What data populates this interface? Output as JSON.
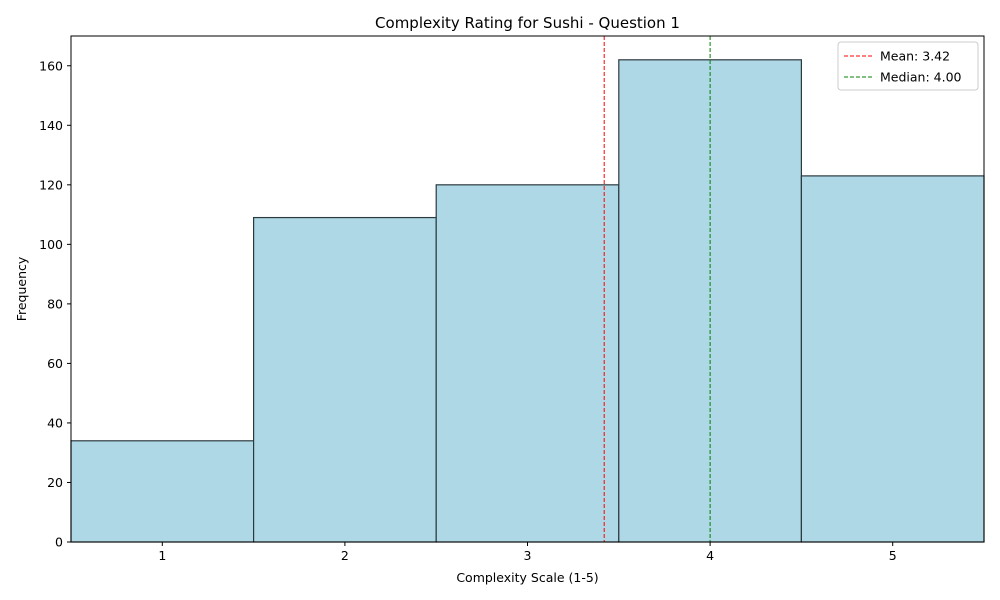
{
  "chart_data": {
    "type": "bar",
    "title": "Complexity Rating for Sushi - Question 1",
    "xlabel": "Complexity Scale (1-5)",
    "ylabel": "Frequency",
    "categories": [
      "1",
      "2",
      "3",
      "4",
      "5"
    ],
    "values": [
      34,
      109,
      120,
      162,
      123
    ],
    "xlim": [
      0.5,
      5.5
    ],
    "ylim": [
      0,
      170
    ],
    "yticks": [
      0,
      20,
      40,
      60,
      80,
      100,
      120,
      140,
      160
    ],
    "grid": false,
    "bar_color": "#add8e6",
    "bar_edge_color": "#000000",
    "reference_lines": [
      {
        "label": "Mean: 3.42",
        "value": 3.42,
        "color": "#ff0000",
        "style": "dashed"
      },
      {
        "label": "Median: 4.00",
        "value": 4.0,
        "color": "#008000",
        "style": "dashed"
      }
    ],
    "legend": "top-right"
  }
}
